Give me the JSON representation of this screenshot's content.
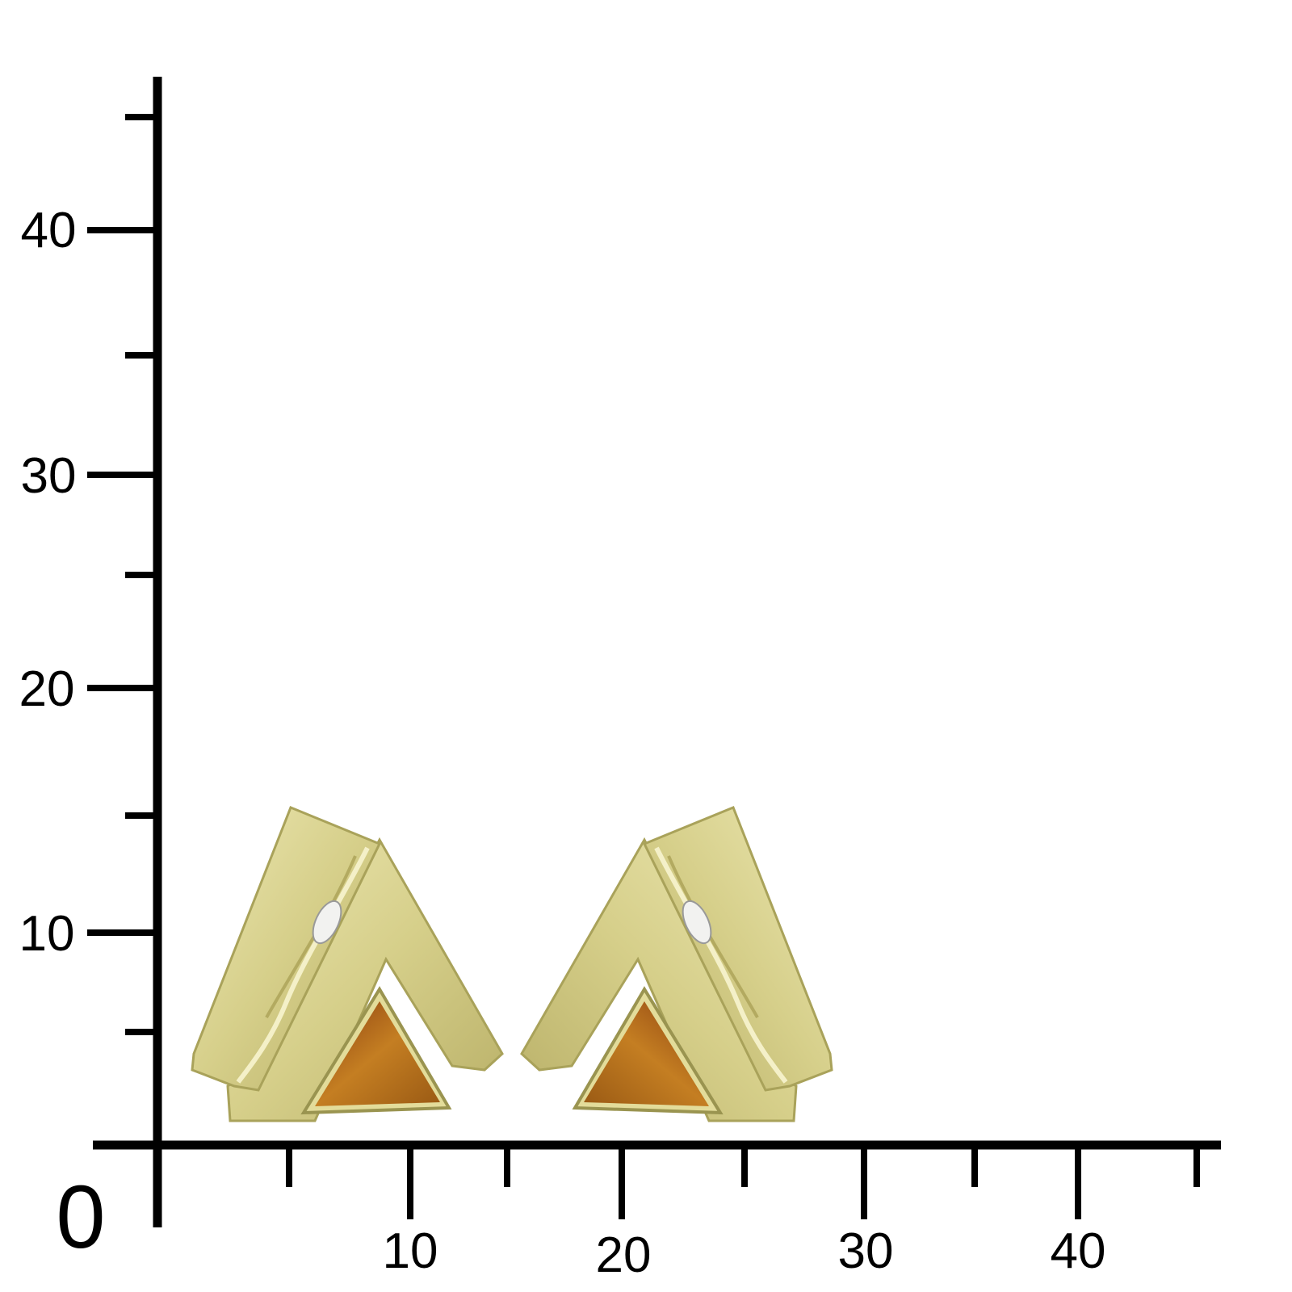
{
  "scale": {
    "origin_label": "0",
    "y_labels": [
      "10",
      "20",
      "30",
      "40"
    ],
    "x_labels": [
      "10",
      "20",
      "30",
      "40"
    ],
    "axis_color": "#000000"
  },
  "photo": {
    "subject": "pair of gold triangle earrings with amber stone and small diamond",
    "colors": {
      "gold": "#d8d28f",
      "gold_dark": "#a9a25a",
      "amber": "#b8741e",
      "amber_dark": "#7a3a10"
    }
  }
}
